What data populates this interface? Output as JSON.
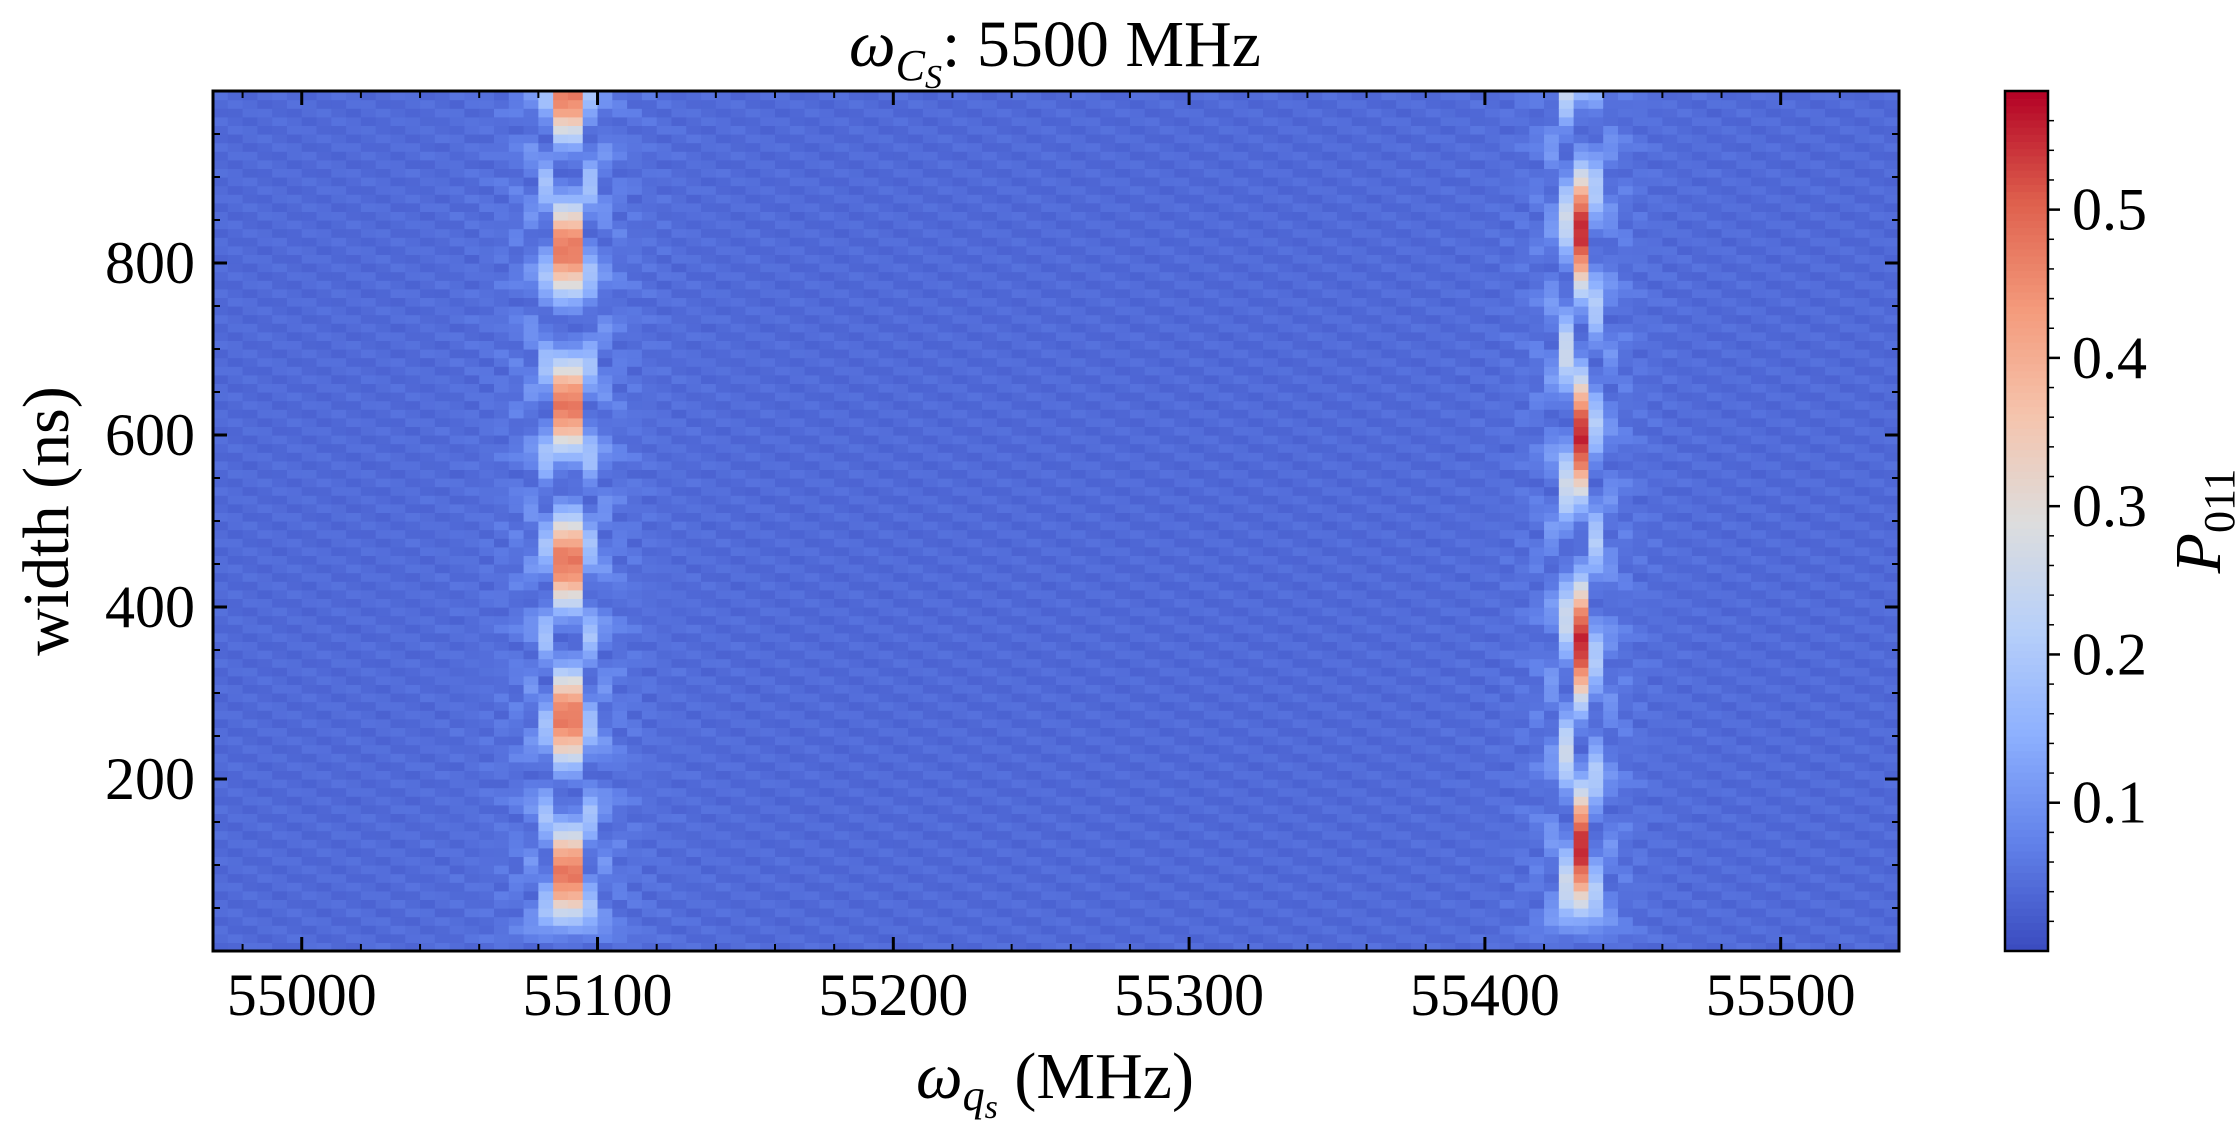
{
  "chart_data": {
    "type": "heatmap",
    "title": {
      "symbol": "ω",
      "subscript_main": "C",
      "subscript_sub": "S",
      "suffix": ": 5500 MHz"
    },
    "xlabel": {
      "symbol": "ω",
      "subscript_main": "q",
      "subscript_sub": "s",
      "suffix": " (MHz)"
    },
    "ylabel": "width (ns)",
    "colorbar": {
      "label_symbol": "P",
      "label_subscript": "011",
      "colormap": "coolwarm",
      "range": [
        0.0,
        0.58
      ],
      "ticks": [
        0.1,
        0.2,
        0.3,
        0.4,
        0.5
      ],
      "tick_labels": [
        "0.1",
        "0.2",
        "0.3",
        "0.4",
        "0.5"
      ]
    },
    "xlim": [
      54970,
      55540
    ],
    "ylim": [
      0,
      1000
    ],
    "x_ticks": [
      55000,
      55100,
      55200,
      55300,
      55400,
      55500
    ],
    "x_tick_labels": [
      "55000",
      "55100",
      "55200",
      "55300",
      "55400",
      "55500"
    ],
    "y_ticks": [
      200,
      400,
      600,
      800
    ],
    "y_tick_labels": [
      "200",
      "400",
      "600",
      "800"
    ],
    "grid": false,
    "resonances": [
      {
        "x_center": 55090,
        "peak_P011": 0.58
      },
      {
        "x_center": 55432,
        "peak_P011": 0.52
      }
    ],
    "grid_resolution": {
      "x_step_MHz": 5,
      "y_step_ns": 10
    }
  }
}
